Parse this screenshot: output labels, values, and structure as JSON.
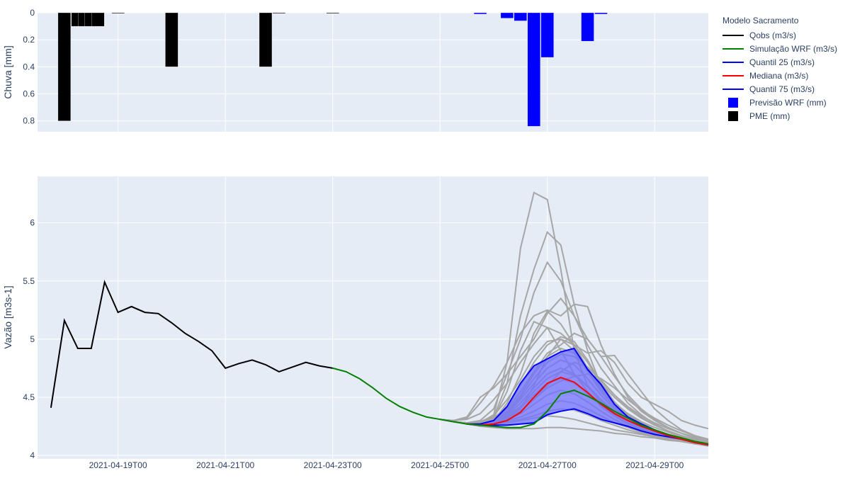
{
  "legend": {
    "title": "Modelo Sacramento",
    "items": [
      {
        "label": "Qobs (m3/s)",
        "kind": "line",
        "color": "#000000"
      },
      {
        "label": "Simulação WRF (m3/s)",
        "kind": "line",
        "color": "#008000"
      },
      {
        "label": "Quantil 25 (m3/s)",
        "kind": "line",
        "color": "#0000ff"
      },
      {
        "label": "Mediana (m3/s)",
        "kind": "line",
        "color": "#ff0000"
      },
      {
        "label": "Quantil 75 (m3/s)",
        "kind": "line",
        "color": "#0000ff"
      },
      {
        "label": "Previsão WRF (mm)",
        "kind": "box",
        "color": "#0000ff"
      },
      {
        "label": "PME (mm)",
        "kind": "box",
        "color": "#000000"
      }
    ]
  },
  "colors": {
    "plot_bg": "#e5ecf6",
    "grid": "#ffffff",
    "obs": "#000000",
    "sim": "#008000",
    "q25": "#0000ff",
    "q75": "#0000ff",
    "median": "#ff0000",
    "band": "#7070ff",
    "members": "#a6a6a6",
    "wrf_bar": "#0000ff",
    "pme_bar": "#000000"
  },
  "chart_data": [
    {
      "type": "bar",
      "ylabel": "Chuva [mm]",
      "yaxis_reversed": true,
      "ylim": [
        0,
        0.88
      ],
      "yticks": [
        0,
        0.2,
        0.4,
        0.6,
        0.8
      ],
      "ytick_labels": [
        "0",
        "0.2",
        "0.4",
        "0.6",
        "0.8"
      ],
      "grid": true,
      "series": [
        {
          "name": "PME (mm)",
          "x": [
            "2021-04-18T00",
            "2021-04-18T06",
            "2021-04-18T09",
            "2021-04-18T12",
            "2021-04-18T15",
            "2021-04-19T00",
            "2021-04-20T00",
            "2021-04-21T18",
            "2021-04-22T00",
            "2021-04-23T00"
          ],
          "values": [
            0.8,
            0.1,
            0.1,
            0.1,
            0.1,
            0.005,
            0.4,
            0.4,
            0.005,
            0.005
          ]
        },
        {
          "name": "Previsão WRF (mm)",
          "x": [
            "2021-04-25T18",
            "2021-04-26T06",
            "2021-04-26T12",
            "2021-04-26T18",
            "2021-04-27T00",
            "2021-04-27T18",
            "2021-04-28T00"
          ],
          "values": [
            0.01,
            0.04,
            0.06,
            0.84,
            0.33,
            0.21,
            0.01
          ]
        }
      ]
    },
    {
      "type": "line",
      "ylabel": "Vazão [m3s-1]",
      "ylim": [
        3.97,
        6.4
      ],
      "yticks": [
        4,
        4.5,
        5,
        5.5,
        6
      ],
      "ytick_labels": [
        "4",
        "4.5",
        "5",
        "5.5",
        "6"
      ],
      "xlim": [
        "2021-04-17T12",
        "2021-04-30T00"
      ],
      "xticks": [
        "2021-04-19T00",
        "2021-04-21T00",
        "2021-04-23T00",
        "2021-04-25T00",
        "2021-04-27T00",
        "2021-04-29T00"
      ],
      "xtick_labels": [
        "2021-04-19T00",
        "2021-04-21T00",
        "2021-04-23T00",
        "2021-04-25T00",
        "2021-04-27T00",
        "2021-04-29T00"
      ],
      "grid": true,
      "series": [
        {
          "name": "Qobs (m3/s)",
          "x": [
            "2021-04-17T18",
            "2021-04-18T00",
            "2021-04-18T06",
            "2021-04-18T12",
            "2021-04-18T18",
            "2021-04-19T00",
            "2021-04-19T06",
            "2021-04-19T12",
            "2021-04-19T18",
            "2021-04-20T00",
            "2021-04-20T06",
            "2021-04-20T12",
            "2021-04-20T18",
            "2021-04-21T00",
            "2021-04-21T06",
            "2021-04-21T12",
            "2021-04-21T18",
            "2021-04-22T00",
            "2021-04-22T06",
            "2021-04-22T12",
            "2021-04-22T18",
            "2021-04-23T00"
          ],
          "values": [
            4.41,
            5.16,
            4.92,
            4.92,
            5.49,
            5.23,
            5.28,
            5.23,
            5.22,
            5.14,
            5.05,
            4.98,
            4.9,
            4.75,
            4.79,
            4.82,
            4.78,
            4.72,
            4.76,
            4.8,
            4.77,
            4.75
          ]
        },
        {
          "name": "Simulação WRF (m3/s)",
          "x": [
            "2021-04-23T00",
            "2021-04-23T06",
            "2021-04-23T12",
            "2021-04-23T18",
            "2021-04-24T00",
            "2021-04-24T06",
            "2021-04-24T12",
            "2021-04-24T18",
            "2021-04-25T00",
            "2021-04-25T06",
            "2021-04-25T12",
            "2021-04-25T18",
            "2021-04-26T00",
            "2021-04-26T06",
            "2021-04-26T12",
            "2021-04-26T18",
            "2021-04-27T00",
            "2021-04-27T06",
            "2021-04-27T12",
            "2021-04-27T18",
            "2021-04-28T00",
            "2021-04-28T06",
            "2021-04-28T12",
            "2021-04-28T18",
            "2021-04-29T00",
            "2021-04-29T06",
            "2021-04-29T12",
            "2021-04-29T18",
            "2021-04-30T00"
          ],
          "values": [
            4.75,
            4.72,
            4.66,
            4.58,
            4.49,
            4.42,
            4.37,
            4.33,
            4.31,
            4.29,
            4.27,
            4.26,
            4.25,
            4.24,
            4.24,
            4.27,
            4.38,
            4.53,
            4.56,
            4.51,
            4.45,
            4.38,
            4.32,
            4.26,
            4.22,
            4.18,
            4.15,
            4.12,
            4.1
          ]
        },
        {
          "name": "Quantil 25 (m3/s)",
          "x": [
            "2021-04-25T12",
            "2021-04-25T18",
            "2021-04-26T00",
            "2021-04-26T06",
            "2021-04-26T12",
            "2021-04-26T18",
            "2021-04-27T00",
            "2021-04-27T06",
            "2021-04-27T12",
            "2021-04-27T18",
            "2021-04-28T00",
            "2021-04-28T06",
            "2021-04-28T12",
            "2021-04-28T18",
            "2021-04-29T00",
            "2021-04-29T06",
            "2021-04-29T12",
            "2021-04-29T18",
            "2021-04-30T00"
          ],
          "values": [
            4.27,
            4.26,
            4.26,
            4.26,
            4.27,
            4.28,
            4.35,
            4.38,
            4.4,
            4.36,
            4.31,
            4.28,
            4.25,
            4.21,
            4.18,
            4.16,
            4.14,
            4.11,
            4.09
          ]
        },
        {
          "name": "Mediana (m3/s)",
          "x": [
            "2021-04-25T12",
            "2021-04-25T18",
            "2021-04-26T00",
            "2021-04-26T06",
            "2021-04-26T12",
            "2021-04-26T18",
            "2021-04-27T00",
            "2021-04-27T06",
            "2021-04-27T12",
            "2021-04-27T18",
            "2021-04-28T00",
            "2021-04-28T06",
            "2021-04-28T12",
            "2021-04-28T18",
            "2021-04-29T00",
            "2021-04-29T06",
            "2021-04-29T12",
            "2021-04-29T18",
            "2021-04-30T00"
          ],
          "values": [
            4.27,
            4.26,
            4.27,
            4.3,
            4.37,
            4.5,
            4.62,
            4.67,
            4.63,
            4.54,
            4.44,
            4.36,
            4.3,
            4.25,
            4.21,
            4.17,
            4.14,
            4.11,
            4.09
          ]
        },
        {
          "name": "Quantil 75 (m3/s)",
          "x": [
            "2021-04-25T12",
            "2021-04-25T18",
            "2021-04-26T00",
            "2021-04-26T06",
            "2021-04-26T12",
            "2021-04-26T18",
            "2021-04-27T00",
            "2021-04-27T06",
            "2021-04-27T12",
            "2021-04-27T18",
            "2021-04-28T00",
            "2021-04-28T06",
            "2021-04-28T12",
            "2021-04-28T18",
            "2021-04-29T00",
            "2021-04-29T06",
            "2021-04-29T12",
            "2021-04-29T18",
            "2021-04-30T00"
          ],
          "values": [
            4.27,
            4.27,
            4.3,
            4.42,
            4.62,
            4.77,
            4.83,
            4.89,
            4.92,
            4.74,
            4.61,
            4.44,
            4.33,
            4.27,
            4.22,
            4.17,
            4.14,
            4.11,
            4.09
          ]
        }
      ],
      "ensemble_members": {
        "x": [
          "2021-04-25T00",
          "2021-04-25T06",
          "2021-04-25T12",
          "2021-04-25T18",
          "2021-04-26T00",
          "2021-04-26T06",
          "2021-04-26T12",
          "2021-04-26T18",
          "2021-04-27T00",
          "2021-04-27T06",
          "2021-04-27T12",
          "2021-04-27T18",
          "2021-04-28T00",
          "2021-04-28T06",
          "2021-04-28T12",
          "2021-04-28T18",
          "2021-04-29T00",
          "2021-04-29T06",
          "2021-04-29T12",
          "2021-04-29T18",
          "2021-04-30T00"
        ],
        "series": [
          [
            4.31,
            4.29,
            4.28,
            4.28,
            4.35,
            4.8,
            5.78,
            6.26,
            6.2,
            5.6,
            4.9,
            4.6,
            4.45,
            4.35,
            4.28,
            4.22,
            4.18,
            4.15,
            4.12,
            4.1,
            4.08
          ],
          [
            4.31,
            4.29,
            4.28,
            4.28,
            4.33,
            4.62,
            5.2,
            5.6,
            5.92,
            5.81,
            5.3,
            4.9,
            4.6,
            4.45,
            4.35,
            4.28,
            4.22,
            4.17,
            4.14,
            4.11,
            4.09
          ],
          [
            4.31,
            4.29,
            4.28,
            4.3,
            4.4,
            4.7,
            5.0,
            5.4,
            5.66,
            5.5,
            5.2,
            4.95,
            4.75,
            4.6,
            4.45,
            4.35,
            4.27,
            4.21,
            4.17,
            4.13,
            4.1
          ],
          [
            4.31,
            4.3,
            4.32,
            4.45,
            4.6,
            4.8,
            5.05,
            5.2,
            5.25,
            5.2,
            5.3,
            5.28,
            4.95,
            4.7,
            4.5,
            4.38,
            4.3,
            4.24,
            4.19,
            4.15,
            4.12
          ],
          [
            4.31,
            4.3,
            4.33,
            4.5,
            4.58,
            4.7,
            4.85,
            5.0,
            5.22,
            5.35,
            5.2,
            5.0,
            4.85,
            4.86,
            4.7,
            4.55,
            4.4,
            4.3,
            4.22,
            4.17,
            4.13
          ],
          [
            4.31,
            4.3,
            4.31,
            4.36,
            4.48,
            4.62,
            4.8,
            4.96,
            5.1,
            5.05,
            4.95,
            4.88,
            4.9,
            4.8,
            4.62,
            4.5,
            4.44,
            4.38,
            4.3,
            4.26,
            4.23
          ],
          [
            4.31,
            4.29,
            4.28,
            4.28,
            4.3,
            4.45,
            4.7,
            5.05,
            5.24,
            5.13,
            4.95,
            4.75,
            4.58,
            4.45,
            4.36,
            4.29,
            4.24,
            4.2,
            4.16,
            4.13,
            4.11
          ],
          [
            4.31,
            4.29,
            4.28,
            4.28,
            4.29,
            4.32,
            4.4,
            4.6,
            4.85,
            5.0,
            4.95,
            4.8,
            4.62,
            4.5,
            4.4,
            4.32,
            4.26,
            4.21,
            4.17,
            4.14,
            4.11
          ],
          [
            4.31,
            4.29,
            4.28,
            4.27,
            4.27,
            4.28,
            4.3,
            4.32,
            4.34,
            4.33,
            4.31,
            4.28,
            4.25,
            4.22,
            4.2,
            4.18,
            4.16,
            4.14,
            4.12,
            4.11,
            4.1
          ],
          [
            4.31,
            4.29,
            4.27,
            4.25,
            4.24,
            4.23,
            4.23,
            4.23,
            4.24,
            4.24,
            4.23,
            4.22,
            4.21,
            4.19,
            4.18,
            4.16,
            4.15,
            4.13,
            4.12,
            4.1,
            4.09
          ],
          [
            4.31,
            4.29,
            4.28,
            4.28,
            4.32,
            4.55,
            4.9,
            5.15,
            5.1,
            4.9,
            4.7,
            4.55,
            4.42,
            4.34,
            4.28,
            4.23,
            4.19,
            4.16,
            4.13,
            4.11,
            4.09
          ],
          [
            4.31,
            4.29,
            4.28,
            4.29,
            4.34,
            4.48,
            4.65,
            4.85,
            4.98,
            5.0,
            4.9,
            4.72,
            4.55,
            4.42,
            4.33,
            4.27,
            4.22,
            4.18,
            4.15,
            4.12,
            4.1
          ],
          [
            4.31,
            4.29,
            4.28,
            4.27,
            4.27,
            4.3,
            4.38,
            4.48,
            4.6,
            4.72,
            4.8,
            4.76,
            4.65,
            4.52,
            4.41,
            4.33,
            4.26,
            4.21,
            4.17,
            4.14,
            4.11
          ],
          [
            4.31,
            4.29,
            4.28,
            4.28,
            4.31,
            4.4,
            4.55,
            4.72,
            4.88,
            4.95,
            5.05,
            5.0,
            4.85,
            4.68,
            4.52,
            4.4,
            4.31,
            4.24,
            4.19,
            4.15,
            4.12
          ],
          [
            4.31,
            4.29,
            4.28,
            4.28,
            4.3,
            4.36,
            4.48,
            4.62,
            4.75,
            4.82,
            4.78,
            4.66,
            4.52,
            4.4,
            4.32,
            4.26,
            4.21,
            4.17,
            4.14,
            4.12,
            4.1
          ],
          [
            4.31,
            4.29,
            4.28,
            4.28,
            4.3,
            4.35,
            4.45,
            4.58,
            4.7,
            4.75,
            4.7,
            4.6,
            4.48,
            4.38,
            4.3,
            4.24,
            4.2,
            4.16,
            4.13,
            4.11,
            4.09
          ],
          [
            4.31,
            4.29,
            4.28,
            4.28,
            4.29,
            4.33,
            4.41,
            4.52,
            4.62,
            4.66,
            4.62,
            4.53,
            4.43,
            4.34,
            4.27,
            4.22,
            4.18,
            4.15,
            4.13,
            4.11,
            4.09
          ],
          [
            4.31,
            4.29,
            4.28,
            4.28,
            4.29,
            4.31,
            4.36,
            4.44,
            4.52,
            4.56,
            4.53,
            4.46,
            4.38,
            4.31,
            4.25,
            4.21,
            4.17,
            4.15,
            4.13,
            4.11,
            4.09
          ],
          [
            4.31,
            4.29,
            4.28,
            4.28,
            4.28,
            4.3,
            4.33,
            4.38,
            4.44,
            4.47,
            4.45,
            4.4,
            4.34,
            4.28,
            4.24,
            4.2,
            4.17,
            4.15,
            4.13,
            4.11,
            4.09
          ],
          [
            4.31,
            4.29,
            4.28,
            4.28,
            4.32,
            4.42,
            4.6,
            4.8,
            4.95,
            5.02,
            4.98,
            4.82,
            4.62,
            4.46,
            4.35,
            4.28,
            4.22,
            4.18,
            4.15,
            4.12,
            4.1
          ],
          [
            4.31,
            4.29,
            4.28,
            4.28,
            4.31,
            4.38,
            4.52,
            4.7,
            4.85,
            4.92,
            4.88,
            4.74,
            4.57,
            4.44,
            4.34,
            4.27,
            4.22,
            4.18,
            4.14,
            4.12,
            4.1
          ],
          [
            4.31,
            4.29,
            4.28,
            4.28,
            4.3,
            4.34,
            4.42,
            4.55,
            4.66,
            4.72,
            4.69,
            4.59,
            4.47,
            4.37,
            4.3,
            4.24,
            4.2,
            4.16,
            4.13,
            4.11,
            4.09
          ],
          [
            4.31,
            4.29,
            4.28,
            4.28,
            4.28,
            4.29,
            4.31,
            4.34,
            4.38,
            4.4,
            4.39,
            4.35,
            4.3,
            4.26,
            4.22,
            4.19,
            4.16,
            4.14,
            4.12,
            4.1,
            4.09
          ],
          [
            4.31,
            4.29,
            4.28,
            4.28,
            4.3,
            4.37,
            4.5,
            4.66,
            4.8,
            4.87,
            4.85,
            4.76,
            4.64,
            4.52,
            4.42,
            4.34,
            4.28,
            4.23,
            4.19,
            4.16,
            4.13
          ],
          [
            4.31,
            4.29,
            4.28,
            4.28,
            4.29,
            4.32,
            4.38,
            4.48,
            4.58,
            4.64,
            4.68,
            4.7,
            4.66,
            4.58,
            4.48,
            4.39,
            4.32,
            4.26,
            4.21,
            4.17,
            4.14
          ]
        ]
      }
    }
  ]
}
